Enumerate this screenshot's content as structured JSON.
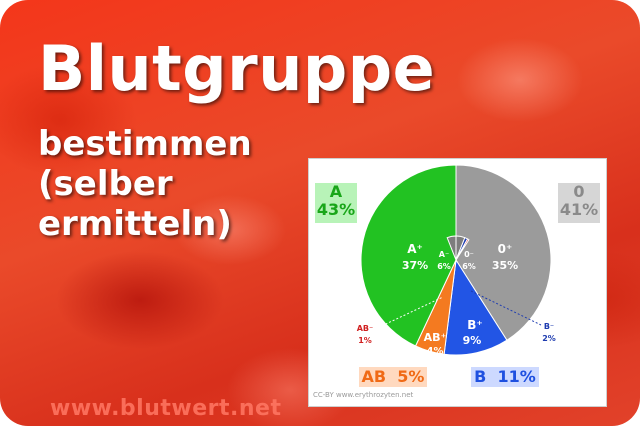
{
  "title": "Blutgruppe",
  "subtitle_lines": [
    "bestimmen",
    "(selber",
    "ermitteln)"
  ],
  "website": "www.blutwert.net",
  "copyright": "CC-BY www.erythrozyten.net",
  "colors": {
    "A": "#22c222",
    "0": "#9b9b9b",
    "B": "#2255e5",
    "AB": "#f47a20",
    "inner_neg": "#7d7d7d",
    "inner_b_neg": "#1e3cb0",
    "inner_ab_neg": "#d02020"
  },
  "chart_data": {
    "type": "pie",
    "groups": [
      {
        "name": "A",
        "percent": "43%",
        "value": 43
      },
      {
        "name": "0",
        "percent": "41%",
        "value": 41
      },
      {
        "name": "B",
        "percent": "11%",
        "value": 11
      },
      {
        "name": "AB",
        "percent": "5%",
        "value": 5
      }
    ],
    "outer_slices": [
      {
        "label": "A⁺",
        "percent": "37%",
        "value": 37
      },
      {
        "label": "A⁻",
        "percent": "6%",
        "value": 6
      },
      {
        "label": "0⁻",
        "percent": "6%",
        "value": 6
      },
      {
        "label": "0⁺",
        "percent": "35%",
        "value": 35
      },
      {
        "label": "B⁻",
        "percent": "2%",
        "value": 2
      },
      {
        "label": "B⁺",
        "percent": "9%",
        "value": 9
      },
      {
        "label": "AB⁺",
        "percent": "4%",
        "value": 4
      },
      {
        "label": "AB⁻",
        "percent": "1%",
        "value": 1
      }
    ]
  }
}
